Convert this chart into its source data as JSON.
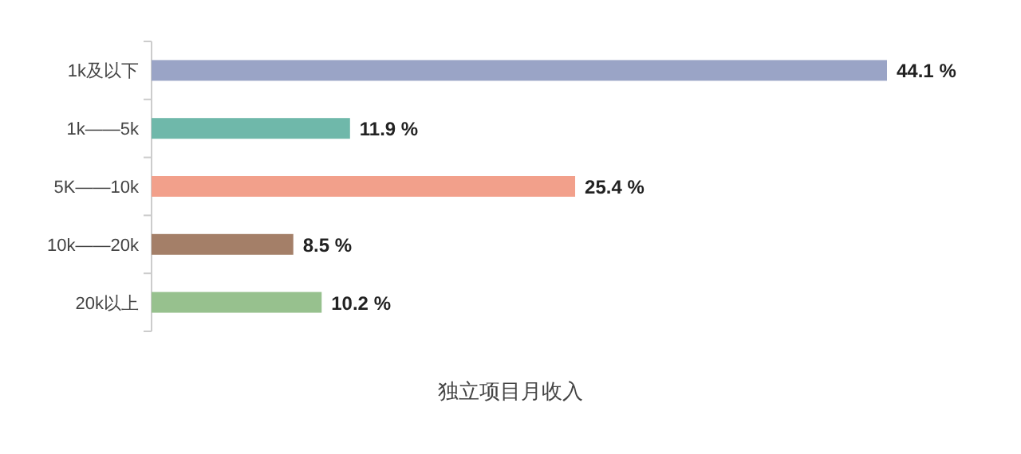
{
  "chart_data": {
    "type": "bar",
    "orientation": "horizontal",
    "xlabel": "独立项目月收入",
    "categories": [
      "1k及以下",
      "1k——5k",
      "5K——10k",
      "10k——20k",
      "20k以上"
    ],
    "values": [
      44.1,
      11.9,
      25.4,
      8.5,
      10.2
    ],
    "colors": [
      "#9aa4c6",
      "#6fb8aa",
      "#f2a08b",
      "#a47f68",
      "#97c18e"
    ],
    "value_labels": [
      "44.1 %",
      "11.9 %",
      "25.4 %",
      "8.5 %",
      "10.2 %"
    ]
  }
}
